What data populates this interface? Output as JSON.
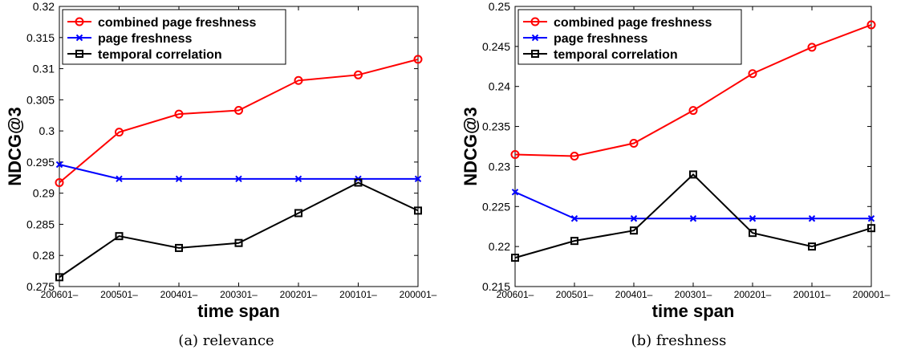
{
  "chart_data": [
    {
      "type": "line",
      "caption": "(a)  relevance",
      "xlabel": "time span",
      "ylabel": "NDCG@3",
      "categories": [
        "200601–",
        "200501–",
        "200401–",
        "200301–",
        "200201–",
        "200101–",
        "200001–"
      ],
      "ylim": [
        0.275,
        0.32
      ],
      "yticks": [
        "0.275",
        "0.28",
        "0.285",
        "0.29",
        "0.295",
        "0.3",
        "0.305",
        "0.31",
        "0.315",
        "0.32"
      ],
      "legend_position": "top-left",
      "series": [
        {
          "name": "combined page freshness",
          "color": "#ff0000",
          "marker": "circle",
          "values": [
            0.2917,
            0.2998,
            0.3027,
            0.3033,
            0.3081,
            0.309,
            0.3115
          ]
        },
        {
          "name": "page freshness",
          "color": "#0000ff",
          "marker": "x",
          "values": [
            0.2946,
            0.2923,
            0.2923,
            0.2923,
            0.2923,
            0.2923,
            0.2923
          ]
        },
        {
          "name": "temporal correlation",
          "color": "#000000",
          "marker": "square",
          "values": [
            0.2765,
            0.2831,
            0.2812,
            0.282,
            0.2868,
            0.2917,
            0.2872
          ]
        }
      ]
    },
    {
      "type": "line",
      "caption": "(b)  freshness",
      "xlabel": "time span",
      "ylabel": "NDCG@3",
      "categories": [
        "200601–",
        "200501–",
        "200401–",
        "200301–",
        "200201–",
        "200101–",
        "200001–"
      ],
      "ylim": [
        0.215,
        0.25
      ],
      "yticks": [
        "0.215",
        "0.22",
        "0.225",
        "0.23",
        "0.235",
        "0.24",
        "0.245",
        "0.25"
      ],
      "legend_position": "top-left",
      "series": [
        {
          "name": "combined page freshness",
          "color": "#ff0000",
          "marker": "circle",
          "values": [
            0.2315,
            0.2313,
            0.2329,
            0.237,
            0.2416,
            0.2449,
            0.2477
          ]
        },
        {
          "name": "page freshness",
          "color": "#0000ff",
          "marker": "x",
          "values": [
            0.2268,
            0.2235,
            0.2235,
            0.2235,
            0.2235,
            0.2235,
            0.2235
          ]
        },
        {
          "name": "temporal correlation",
          "color": "#000000",
          "marker": "square",
          "values": [
            0.2186,
            0.2207,
            0.222,
            0.229,
            0.2217,
            0.22,
            0.2223
          ]
        }
      ]
    }
  ]
}
